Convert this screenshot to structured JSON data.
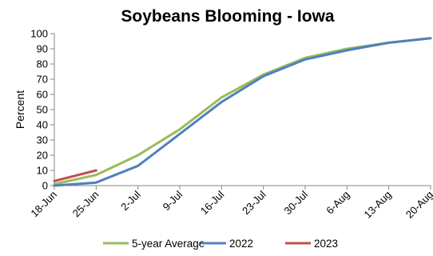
{
  "chart_data": {
    "type": "line",
    "title": "Soybeans Blooming - Iowa",
    "xlabel": "",
    "ylabel": "Percent",
    "ylim": [
      0,
      100
    ],
    "yticks": [
      0,
      10,
      20,
      30,
      40,
      50,
      60,
      70,
      80,
      90,
      100
    ],
    "categories": [
      "18-Jun",
      "25-Jun",
      "2-Jul",
      "9-Jul",
      "16-Jul",
      "23-Jul",
      "30-Jul",
      "6-Aug",
      "13-Aug",
      "20-Aug"
    ],
    "grid": false,
    "legend_position": "bottom",
    "series": [
      {
        "name": "5-year Average",
        "color": "#9bbb59",
        "values": [
          1,
          7,
          20,
          37,
          58,
          73,
          84,
          90,
          94,
          97
        ]
      },
      {
        "name": "2022",
        "color": "#4f81bd",
        "values": [
          0,
          2,
          13,
          34,
          55,
          72,
          83,
          89,
          94,
          97
        ]
      },
      {
        "name": "2023",
        "color": "#c0504d",
        "values": [
          3,
          10,
          null,
          null,
          null,
          null,
          null,
          null,
          null,
          null
        ]
      }
    ]
  }
}
